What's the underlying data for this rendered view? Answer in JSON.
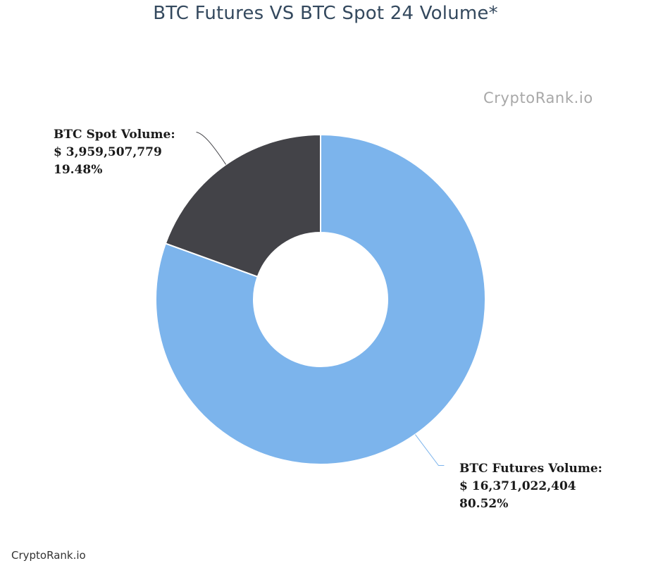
{
  "title": "BTC Futures VS BTC Spot 24 Volume*",
  "watermark": "CryptoRank.io",
  "credit": "CryptoRank.io",
  "chart_data": {
    "type": "pie",
    "donut": true,
    "title": "BTC Futures VS BTC Spot 24 Volume*",
    "slices": [
      {
        "name": "BTC Futures Volume",
        "label": "BTC Futures Volume:",
        "value_text": "$ 16,371,022,404",
        "percent_text": "80.52%",
        "value": 16371022404,
        "percent": 80.52,
        "color": "#7cb4ec"
      },
      {
        "name": "BTC Spot Volume",
        "label": "BTC Spot Volume:",
        "value_text": "$ 3,959,507,779",
        "percent_text": "19.48%",
        "value": 3959507779,
        "percent": 19.48,
        "color": "#434348"
      }
    ],
    "legend": "none"
  }
}
